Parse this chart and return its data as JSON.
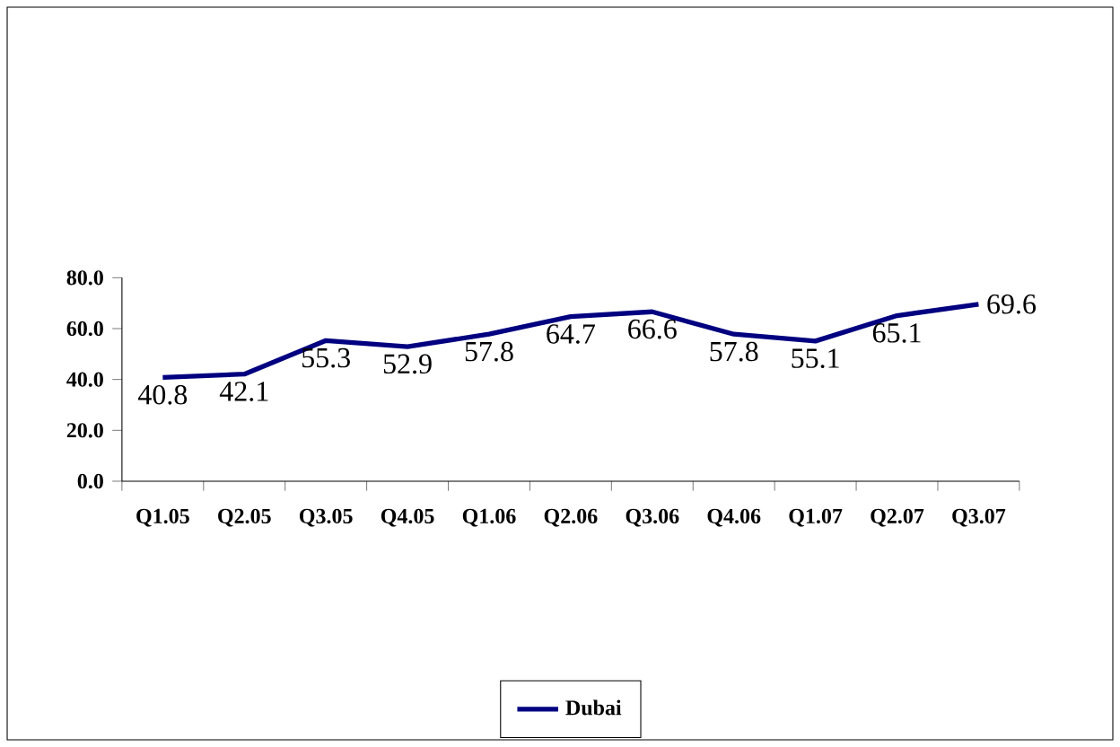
{
  "chart_data": {
    "type": "line",
    "categories": [
      "Q1.05",
      "Q2.05",
      "Q3.05",
      "Q4.05",
      "Q1.06",
      "Q2.06",
      "Q3.06",
      "Q4.06",
      "Q1.07",
      "Q2.07",
      "Q3.07"
    ],
    "series": [
      {
        "name": "Dubai",
        "color": "#000080",
        "values": [
          40.8,
          42.1,
          55.3,
          52.9,
          57.8,
          64.7,
          66.6,
          57.8,
          55.1,
          65.1,
          69.6
        ],
        "value_labels": [
          "40.8",
          "42.1",
          "55.3",
          "52.9",
          "57.8",
          "64.7",
          "66.6",
          "57.8",
          "55.1",
          "65.1",
          "69.6"
        ]
      }
    ],
    "ylim": [
      0,
      80
    ],
    "yticks": [
      {
        "value": 0,
        "label": "0.0"
      },
      {
        "value": 20,
        "label": "20.0"
      },
      {
        "value": 40,
        "label": "40.0"
      },
      {
        "value": 60,
        "label": "60.0"
      },
      {
        "value": 80,
        "label": "80.0"
      }
    ],
    "legend": "bottom",
    "grid": false,
    "marker": "none",
    "line_style": "solid"
  }
}
